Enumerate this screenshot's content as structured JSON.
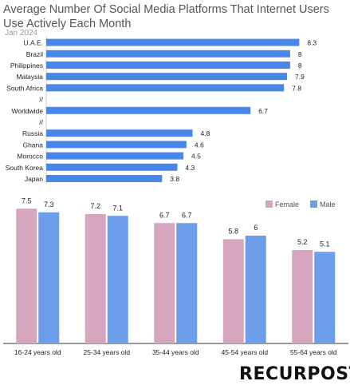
{
  "title": "Average Number Of Social Media Platforms That Internet Users Use Actively Each Month",
  "subtitle": "Jan 2024",
  "logo_text": "RECURPOST",
  "colors": {
    "country_bar": "#4a86e8",
    "female": "#d5a6bd",
    "male": "#6d9eeb"
  },
  "chart_data": [
    {
      "type": "bar",
      "orientation": "horizontal",
      "title": "Average Number Of Social Media Platforms That Internet Users Use Actively Each Month",
      "subtitle": "Jan 2024",
      "rows": [
        {
          "label": "U.A.E.",
          "value": 8.3
        },
        {
          "label": "Brazil",
          "value": 8
        },
        {
          "label": "Philippines",
          "value": 8
        },
        {
          "label": "Malaysia",
          "value": 7.9
        },
        {
          "label": "South Africa",
          "value": 7.8
        },
        {
          "label": "//",
          "value": null
        },
        {
          "label": "Worldwide",
          "value": 6.7
        },
        {
          "label": "//",
          "value": null
        },
        {
          "label": "Russia",
          "value": 4.8
        },
        {
          "label": "Ghana",
          "value": 4.6
        },
        {
          "label": "Morocco",
          "value": 4.5
        },
        {
          "label": "South Korea",
          "value": 4.3
        },
        {
          "label": "Japan",
          "value": 3.8
        }
      ],
      "xlim": [
        0,
        8.5
      ]
    },
    {
      "type": "bar",
      "categories": [
        "16-24 years old",
        "25-34 years old",
        "35-44 years old",
        "45-54 years old",
        "55-64 years old"
      ],
      "series": [
        {
          "name": "Female",
          "values": [
            7.5,
            7.2,
            6.7,
            5.8,
            5.2
          ]
        },
        {
          "name": "Male",
          "values": [
            7.3,
            7.1,
            6.7,
            6,
            5.1
          ]
        }
      ],
      "legend": "top-right",
      "ylim": [
        0,
        8
      ]
    }
  ]
}
